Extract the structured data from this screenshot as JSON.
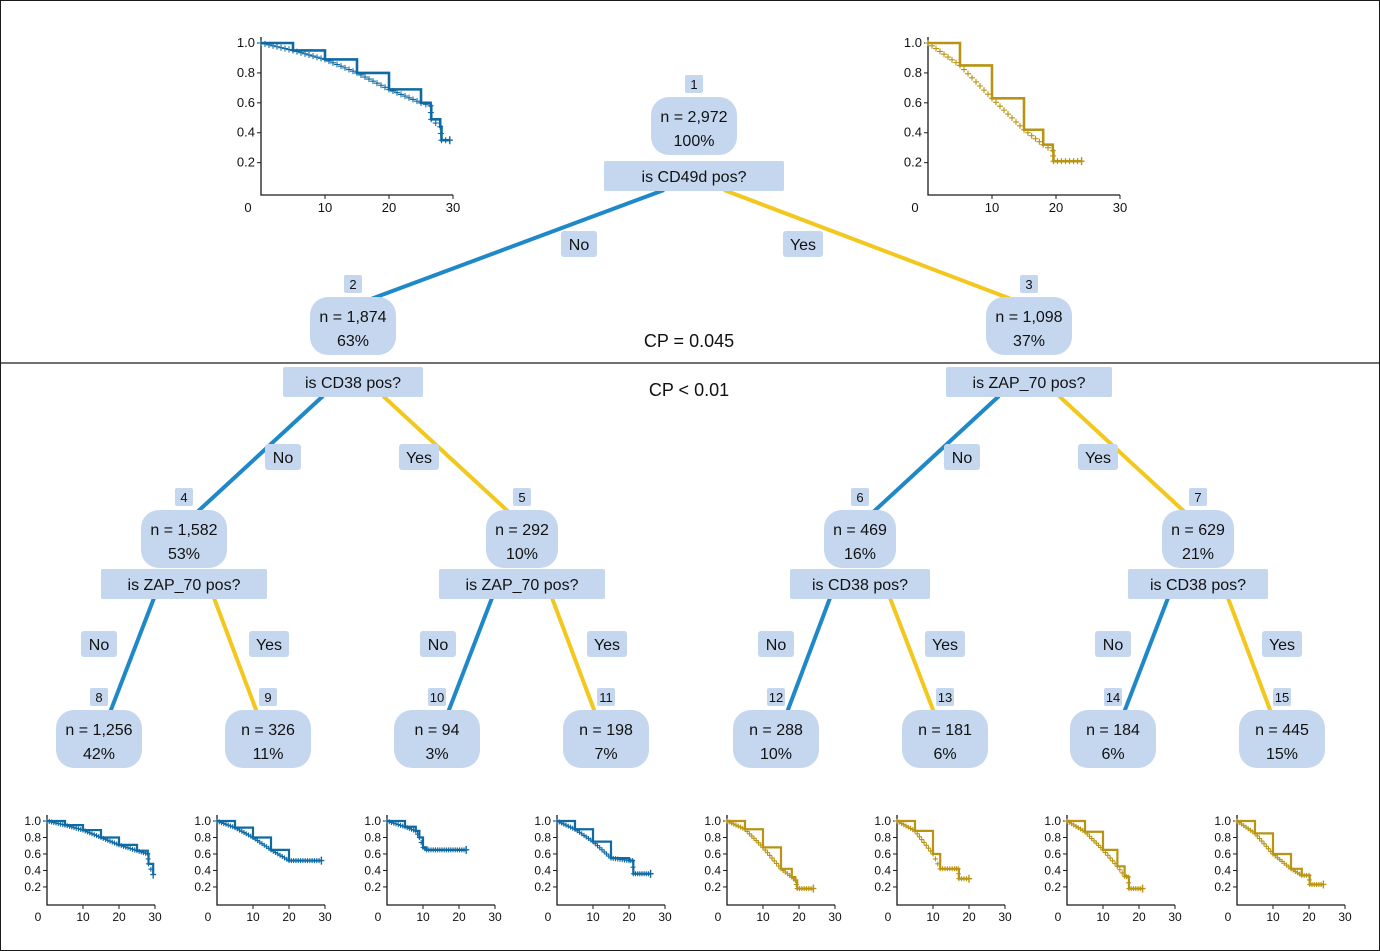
{
  "colors": {
    "no_branch": "#1f88c8",
    "yes_branch": "#f2c81e",
    "node_fill": "#c5d7ef",
    "km_no": "#0f6aa3",
    "km_yes": "#b89412"
  },
  "cp_labels": {
    "upper": "CP = 0.045",
    "lower": "CP < 0.01"
  },
  "nodes": [
    {
      "id": "1",
      "n": "n = 2,972",
      "pct": "100%",
      "question": "is CD49d pos?",
      "no": "No",
      "yes": "Yes"
    },
    {
      "id": "2",
      "n": "n = 1,874",
      "pct": "63%",
      "question": "is CD38 pos?",
      "no": "No",
      "yes": "Yes"
    },
    {
      "id": "3",
      "n": "n = 1,098",
      "pct": "37%",
      "question": "is ZAP_70 pos?",
      "no": "No",
      "yes": "Yes"
    },
    {
      "id": "4",
      "n": "n = 1,582",
      "pct": "53%",
      "question": "is ZAP_70 pos?",
      "no": "No",
      "yes": "Yes"
    },
    {
      "id": "5",
      "n": "n = 292",
      "pct": "10%",
      "question": "is ZAP_70 pos?",
      "no": "No",
      "yes": "Yes"
    },
    {
      "id": "6",
      "n": "n = 469",
      "pct": "16%",
      "question": "is CD38 pos?",
      "no": "No",
      "yes": "Yes"
    },
    {
      "id": "7",
      "n": "n = 629",
      "pct": "21%",
      "question": "is CD38 pos?",
      "no": "No",
      "yes": "Yes"
    },
    {
      "id": "8",
      "n": "n = 1,256",
      "pct": "42%"
    },
    {
      "id": "9",
      "n": "n = 326",
      "pct": "11%"
    },
    {
      "id": "10",
      "n": "n = 94",
      "pct": "3%"
    },
    {
      "id": "11",
      "n": "n = 198",
      "pct": "7%"
    },
    {
      "id": "12",
      "n": "n = 288",
      "pct": "10%"
    },
    {
      "id": "13",
      "n": "n = 181",
      "pct": "6%"
    },
    {
      "id": "14",
      "n": "n = 184",
      "pct": "6%"
    },
    {
      "id": "15",
      "n": "n = 445",
      "pct": "15%"
    }
  ],
  "km_plots": [
    {
      "for_node": "2",
      "group": "no",
      "xticks": [
        "0",
        "10",
        "20",
        "30"
      ],
      "yticks": [
        "1.0",
        "0.8",
        "0.6",
        "0.4",
        "0.2"
      ],
      "xlim": [
        0,
        30
      ],
      "ylim": [
        0.2,
        1.0
      ],
      "curve": [
        [
          0,
          1.0
        ],
        [
          5,
          0.95
        ],
        [
          10,
          0.89
        ],
        [
          15,
          0.8
        ],
        [
          20,
          0.69
        ],
        [
          25,
          0.6
        ],
        [
          26.5,
          0.58
        ],
        [
          26.6,
          0.49
        ],
        [
          28,
          0.44
        ],
        [
          28.2,
          0.35
        ],
        [
          29.5,
          0.35
        ]
      ]
    },
    {
      "for_node": "3",
      "group": "yes",
      "xticks": [
        "0",
        "10",
        "20",
        "30"
      ],
      "yticks": [
        "1.0",
        "0.8",
        "0.6",
        "0.4",
        "0.2"
      ],
      "xlim": [
        0,
        30
      ],
      "ylim": [
        0.2,
        1.0
      ],
      "curve": [
        [
          0,
          1.0
        ],
        [
          5,
          0.85
        ],
        [
          10,
          0.63
        ],
        [
          15,
          0.42
        ],
        [
          18,
          0.32
        ],
        [
          19.5,
          0.28
        ],
        [
          19.6,
          0.21
        ],
        [
          24,
          0.21
        ]
      ]
    },
    {
      "for_node": "8",
      "group": "no",
      "xticks": [
        "0",
        "10",
        "20",
        "30"
      ],
      "yticks": [
        "1.0",
        "0.8",
        "0.6",
        "0.4",
        "0.2"
      ],
      "xlim": [
        0,
        30
      ],
      "ylim": [
        0.2,
        1.0
      ],
      "curve": [
        [
          0,
          1.0
        ],
        [
          5,
          0.95
        ],
        [
          10,
          0.89
        ],
        [
          15,
          0.8
        ],
        [
          20,
          0.71
        ],
        [
          25,
          0.64
        ],
        [
          28,
          0.6
        ],
        [
          28.2,
          0.48
        ],
        [
          29.5,
          0.35
        ]
      ]
    },
    {
      "for_node": "9",
      "group": "no",
      "xticks": [
        "0",
        "10",
        "20",
        "30"
      ],
      "yticks": [
        "1.0",
        "0.8",
        "0.6",
        "0.4",
        "0.2"
      ],
      "xlim": [
        0,
        30
      ],
      "ylim": [
        0.2,
        1.0
      ],
      "curve": [
        [
          0,
          1.0
        ],
        [
          5,
          0.92
        ],
        [
          10,
          0.8
        ],
        [
          15,
          0.65
        ],
        [
          20,
          0.52
        ],
        [
          29,
          0.52
        ]
      ]
    },
    {
      "for_node": "10",
      "group": "no",
      "xticks": [
        "0",
        "10",
        "20",
        "30"
      ],
      "yticks": [
        "1.0",
        "0.8",
        "0.6",
        "0.4",
        "0.2"
      ],
      "xlim": [
        0,
        30
      ],
      "ylim": [
        0.2,
        1.0
      ],
      "curve": [
        [
          0,
          1.0
        ],
        [
          5,
          0.93
        ],
        [
          8,
          0.88
        ],
        [
          9,
          0.8
        ],
        [
          10,
          0.68
        ],
        [
          11,
          0.65
        ],
        [
          22,
          0.65
        ]
      ]
    },
    {
      "for_node": "11",
      "group": "no",
      "xticks": [
        "0",
        "10",
        "20",
        "30"
      ],
      "yticks": [
        "1.0",
        "0.8",
        "0.6",
        "0.4",
        "0.2"
      ],
      "xlim": [
        0,
        30
      ],
      "ylim": [
        0.2,
        1.0
      ],
      "curve": [
        [
          0,
          1.0
        ],
        [
          5,
          0.9
        ],
        [
          10,
          0.75
        ],
        [
          15,
          0.55
        ],
        [
          20,
          0.52
        ],
        [
          21,
          0.52
        ],
        [
          21.2,
          0.36
        ],
        [
          26,
          0.36
        ]
      ]
    },
    {
      "for_node": "12",
      "group": "yes",
      "xticks": [
        "0",
        "10",
        "20",
        "30"
      ],
      "yticks": [
        "1.0",
        "0.8",
        "0.6",
        "0.4",
        "0.2"
      ],
      "xlim": [
        0,
        30
      ],
      "ylim": [
        0.2,
        1.0
      ],
      "curve": [
        [
          0,
          1.0
        ],
        [
          5,
          0.9
        ],
        [
          10,
          0.68
        ],
        [
          15,
          0.42
        ],
        [
          18,
          0.32
        ],
        [
          19,
          0.28
        ],
        [
          19.5,
          0.18
        ],
        [
          24,
          0.18
        ]
      ]
    },
    {
      "for_node": "13",
      "group": "yes",
      "xticks": [
        "0",
        "10",
        "20",
        "30"
      ],
      "yticks": [
        "1.0",
        "0.8",
        "0.6",
        "0.4",
        "0.2"
      ],
      "xlim": [
        0,
        30
      ],
      "ylim": [
        0.2,
        1.0
      ],
      "curve": [
        [
          0,
          1.0
        ],
        [
          5,
          0.88
        ],
        [
          10,
          0.6
        ],
        [
          12,
          0.42
        ],
        [
          16,
          0.42
        ],
        [
          17,
          0.42
        ],
        [
          17.2,
          0.3
        ],
        [
          20,
          0.3
        ]
      ]
    },
    {
      "for_node": "14",
      "group": "yes",
      "xticks": [
        "0",
        "10",
        "20",
        "30"
      ],
      "yticks": [
        "1.0",
        "0.8",
        "0.6",
        "0.4",
        "0.2"
      ],
      "xlim": [
        0,
        30
      ],
      "ylim": [
        0.2,
        1.0
      ],
      "curve": [
        [
          0,
          1.0
        ],
        [
          5,
          0.87
        ],
        [
          10,
          0.65
        ],
        [
          14,
          0.45
        ],
        [
          16,
          0.33
        ],
        [
          17,
          0.32
        ],
        [
          17.2,
          0.18
        ],
        [
          21,
          0.18
        ]
      ]
    },
    {
      "for_node": "15",
      "group": "yes",
      "xticks": [
        "0",
        "10",
        "20",
        "30"
      ],
      "yticks": [
        "1.0",
        "0.8",
        "0.6",
        "0.4",
        "0.2"
      ],
      "xlim": [
        0,
        30
      ],
      "ylim": [
        0.2,
        1.0
      ],
      "curve": [
        [
          0,
          1.0
        ],
        [
          5,
          0.85
        ],
        [
          10,
          0.6
        ],
        [
          15,
          0.42
        ],
        [
          18,
          0.34
        ],
        [
          20,
          0.34
        ],
        [
          20.2,
          0.23
        ],
        [
          24,
          0.23
        ]
      ]
    }
  ]
}
